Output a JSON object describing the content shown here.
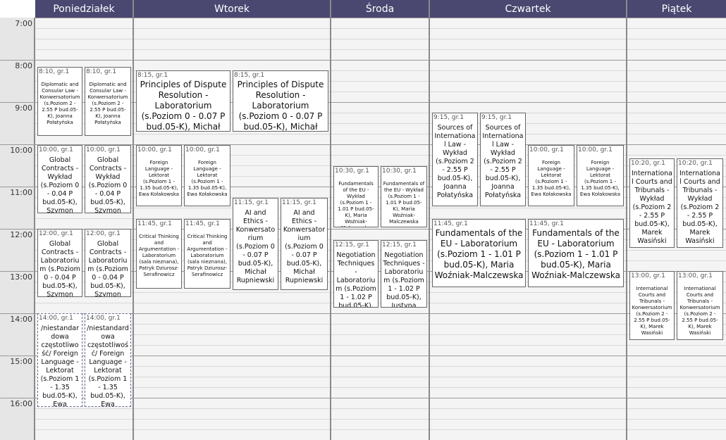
{
  "days": [
    "Poniedziałek",
    "Wtorek",
    "Środa",
    "Czwartek",
    "Piątek"
  ],
  "hours": [
    "7:00",
    "8:00",
    "9:00",
    "10:00",
    "11:00",
    "12:00",
    "13:00",
    "14:00",
    "15:00",
    "16:00"
  ],
  "events": [
    {
      "day": "Poniedziałek",
      "header": "8:10, gr.1",
      "text": "Diplomatic and Consular Law - Konwersatorium (s.Poziom 2 - 2.55 P bud.05-K), Joanna Połatyńska"
    },
    {
      "day": "Poniedziałek",
      "header": "8:10, gr.1",
      "text": "Diplomatic and Consular Law - Konwersatorium (s.Poziom 2 - 2.55 P bud.05-K), Joanna Połatyńska"
    },
    {
      "day": "Poniedziałek",
      "header": "10:00, gr.1",
      "text": "Global Contracts - Wykład (s.Poziom 0 - 0.04 P bud.05-K), Szymon Byczko"
    },
    {
      "day": "Poniedziałek",
      "header": "10:00, gr.1",
      "text": "Global Contracts - Wykład (s.Poziom 0 - 0.04 P bud.05-K), Szymon Byczko"
    },
    {
      "day": "Poniedziałek",
      "header": "12:00, gr.1",
      "text": "Global Contracts - Laboratorium (s.Poziom 0 - 0.04 P bud.05-K), Szymon Byczko"
    },
    {
      "day": "Poniedziałek",
      "header": "12:00, gr.1",
      "text": "Global Contracts - Laboratorium (s.Poziom 0 - 0.04 P bud.05-K), Szymon Byczko"
    },
    {
      "day": "Poniedziałek",
      "header": "14:00, gr.1",
      "text": "/niestandardowa częstotliwość/ Foreign Language - Lektorat (s.Poziom 1 - 1.35 bud.05-K), Ewa Kołakowska"
    },
    {
      "day": "Poniedziałek",
      "header": "14:00, gr.1",
      "text": "/niestandardowa częstotliwość/ Foreign Language - Lektorat (s.Poziom 1 - 1.35 bud.05-K), Ewa Kołakowska"
    },
    {
      "day": "Wtorek",
      "header": "8:15, gr.1",
      "text": "Principles of Dispute Resolution - Laboratorium (s.Poziom 0 - 0.07 P bud.05-K), Michał Klonowski"
    },
    {
      "day": "Wtorek",
      "header": "8:15, gr.1",
      "text": "Principles of Dispute Resolution - Laboratorium (s.Poziom 0 - 0.07 P bud.05-K), Michał Klonowski"
    },
    {
      "day": "Wtorek",
      "header": "10:00, gr.1",
      "text": "Foreign Language - Lektorat (s.Poziom 1 - 1.35 bud.05-K), Ewa Kołakowska"
    },
    {
      "day": "Wtorek",
      "header": "10:00, gr.1",
      "text": "Foreign Language - Lektorat (s.Poziom 1 - 1.35 bud.05-K), Ewa Kołakowska"
    },
    {
      "day": "Wtorek",
      "header": "11:15, gr.1",
      "text": "AI and Ethics - Konwersatorium (s.Poziom 0 - 0.07 P bud.05-K), Michał Rupniewski"
    },
    {
      "day": "Wtorek",
      "header": "11:15, gr.1",
      "text": "AI and Ethics - Konwersatorium (s.Poziom 0 - 0.07 P bud.05-K), Michał Rupniewski"
    },
    {
      "day": "Wtorek",
      "header": "11:45, gr.1",
      "text": "Critical Thinking and Argumentation - Laboratorium (sala nieznana), Patryk Dziurosz-Serafinowicz"
    },
    {
      "day": "Wtorek",
      "header": "11:45, gr.1",
      "text": "Critical Thinking and Argumentation - Laboratorium (sala nieznana), Patryk Dziurosz-Serafinowicz"
    },
    {
      "day": "Środa",
      "header": "10:30, gr.1",
      "text": "Fundamentals of the EU - Wykład (s.Poziom 1 - 1.01 P bud.05-K), Maria Woźniak-Malczewska"
    },
    {
      "day": "Środa",
      "header": "10:30, gr.1",
      "text": "Fundamentals of the EU - Wykład (s.Poziom 1 - 1.01 P bud.05-K), Maria Woźniak-Malczewska"
    },
    {
      "day": "Środa",
      "header": "12:15, gr.1",
      "text": "Negotiation Techniques - Laboratorium (s.Poziom 1 - 1.02 P bud.05-K), Justyna Wieloch"
    },
    {
      "day": "Środa",
      "header": "12:15, gr.1",
      "text": "Negotiation Techniques - Laboratorium (s.Poziom 1 - 1.02 P bud.05-K), Justyna Wieloch"
    },
    {
      "day": "Czwartek",
      "header": "9:15, gr.1",
      "text": "Sources of International Law - Wykład (s.Poziom 2 - 2.55 P bud.05-K), Joanna Połatyńska"
    },
    {
      "day": "Czwartek",
      "header": "9:15, gr.1",
      "text": "Sources of International Law - Wykład (s.Poziom 2 - 2.55 P bud.05-K), Joanna Połatyńska"
    },
    {
      "day": "Czwartek",
      "header": "10:00, gr.1",
      "text": "Foreign Language - Lektorat (s.Poziom 1 - 1.35 bud.05-K), Ewa Kołakowska"
    },
    {
      "day": "Czwartek",
      "header": "10:00, gr.1",
      "text": "Foreign Language - Lektorat (s.Poziom 1 - 1.35 bud.05-K), Ewa Kołakowska"
    },
    {
      "day": "Czwartek",
      "header": "11:45, gr.1",
      "text": "Fundamentals of the EU - Laboratorium (s.Poziom 1 - 1.01 P bud.05-K), Maria Woźniak-Malczewska"
    },
    {
      "day": "Czwartek",
      "header": "11:45, gr.1",
      "text": "Fundamentals of the EU - Laboratorium (s.Poziom 1 - 1.01 P bud.05-K), Maria Woźniak-Malczewska"
    },
    {
      "day": "Piątek",
      "header": "10:20, gr.1",
      "text": "International Courts and Tribunals - Wykład (s.Poziom 2 - 2.55 P bud.05-K), Marek Wasiński"
    },
    {
      "day": "Piątek",
      "header": "10:20, gr.1",
      "text": "International Courts and Tribunals - Wykład (s.Poziom 2 - 2.55 P bud.05-K), Marek Wasiński"
    },
    {
      "day": "Piątek",
      "header": "13:00, gr.1",
      "text": "International Courts and Tribunals - Konwersatorium (s.Poziom 2 - 2.55 P bud.05-K), Marek Wasiński"
    },
    {
      "day": "Piątek",
      "header": "13:00, gr.1",
      "text": "International Courts and Tribunals - Konwersatorium (s.Poziom 2 - 2.55 P bud.05-K), Marek Wasiński"
    }
  ],
  "colors": {
    "header_bg": "#4a4770",
    "header_text": "#ffffff",
    "event_bg": "#ffffff",
    "grid_bg": "#f4f4f4"
  }
}
